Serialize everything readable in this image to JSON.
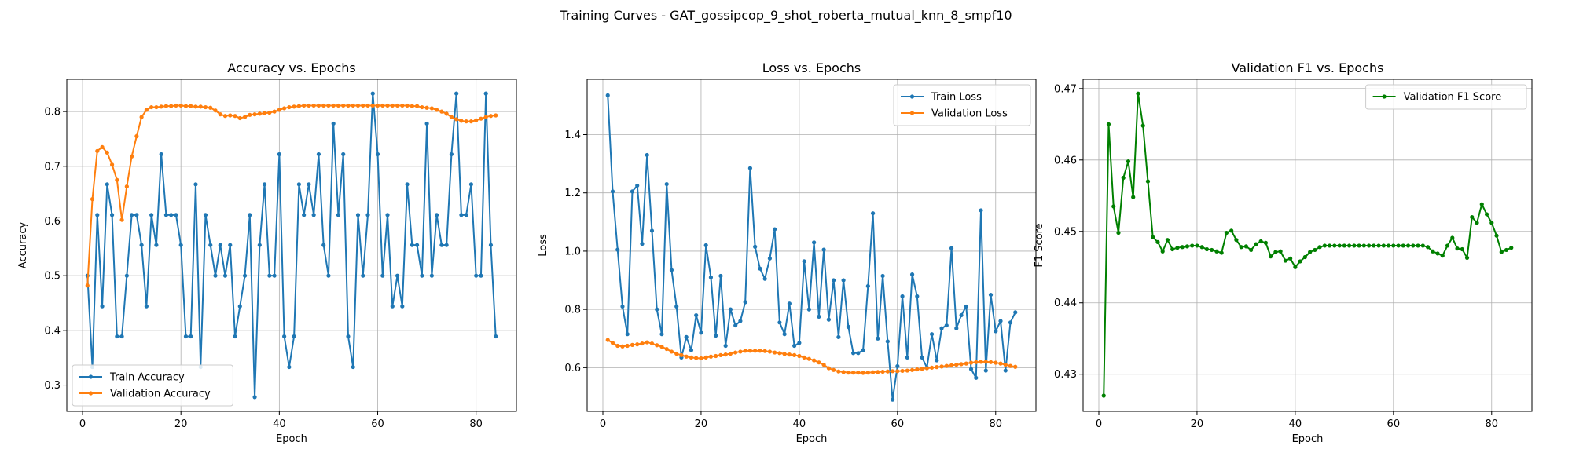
{
  "figure": {
    "title": "Training Curves - GAT_gossipcop_9_shot_roberta_mutual_knn_8_smpf10"
  },
  "chart_data": [
    {
      "type": "line",
      "title": "Accuracy vs. Epochs",
      "xlabel": "Epoch",
      "ylabel": "Accuracy",
      "xlim": [
        -3.2,
        88.2
      ],
      "ylim": [
        0.252,
        0.859
      ],
      "xticks": [
        0,
        20,
        40,
        60,
        80
      ],
      "yticks": [
        0.3,
        0.4,
        0.5,
        0.6,
        0.7,
        0.8
      ],
      "grid": true,
      "legend_position": "lower-left",
      "series": [
        {
          "name": "Train Accuracy",
          "color": "#1f77b4",
          "y": [
            0.5,
            0.333,
            0.611,
            0.444,
            0.667,
            0.611,
            0.389,
            0.389,
            0.5,
            0.611,
            0.611,
            0.556,
            0.444,
            0.611,
            0.556,
            0.722,
            0.611,
            0.611,
            0.611,
            0.556,
            0.389,
            0.389,
            0.667,
            0.333,
            0.611,
            0.556,
            0.5,
            0.556,
            0.5,
            0.556,
            0.389,
            0.444,
            0.5,
            0.611,
            0.278,
            0.556,
            0.667,
            0.5,
            0.5,
            0.722,
            0.389,
            0.333,
            0.389,
            0.667,
            0.611,
            0.667,
            0.611,
            0.722,
            0.556,
            0.5,
            0.778,
            0.611,
            0.722,
            0.389,
            0.333,
            0.611,
            0.5,
            0.611,
            0.833,
            0.722,
            0.5,
            0.611,
            0.444,
            0.5,
            0.444,
            0.667,
            0.556,
            0.556,
            0.5,
            0.778,
            0.5,
            0.611,
            0.556,
            0.556,
            0.722,
            0.833,
            0.611,
            0.611,
            0.667,
            0.5,
            0.5,
            0.833,
            0.556,
            0.389
          ]
        },
        {
          "name": "Validation Accuracy",
          "color": "#ff7f0e",
          "y": [
            0.482,
            0.64,
            0.728,
            0.735,
            0.725,
            0.703,
            0.675,
            0.602,
            0.663,
            0.718,
            0.755,
            0.79,
            0.803,
            0.808,
            0.808,
            0.809,
            0.81,
            0.81,
            0.811,
            0.811,
            0.81,
            0.81,
            0.809,
            0.809,
            0.808,
            0.807,
            0.802,
            0.795,
            0.792,
            0.793,
            0.792,
            0.788,
            0.79,
            0.794,
            0.795,
            0.796,
            0.797,
            0.798,
            0.8,
            0.803,
            0.806,
            0.808,
            0.809,
            0.81,
            0.811,
            0.811,
            0.811,
            0.811,
            0.811,
            0.811,
            0.811,
            0.811,
            0.811,
            0.811,
            0.811,
            0.811,
            0.811,
            0.811,
            0.811,
            0.811,
            0.811,
            0.811,
            0.811,
            0.811,
            0.811,
            0.811,
            0.81,
            0.81,
            0.808,
            0.807,
            0.806,
            0.803,
            0.8,
            0.796,
            0.79,
            0.786,
            0.783,
            0.782,
            0.782,
            0.784,
            0.787,
            0.79,
            0.792,
            0.793
          ]
        }
      ]
    },
    {
      "type": "line",
      "title": "Loss vs. Epochs",
      "xlabel": "Epoch",
      "ylabel": "Loss",
      "xlim": [
        -3.2,
        88.2
      ],
      "ylim": [
        0.45,
        1.59
      ],
      "xticks": [
        0,
        20,
        40,
        60,
        80
      ],
      "yticks": [
        0.6,
        0.8,
        1.0,
        1.2,
        1.4
      ],
      "grid": true,
      "legend_position": "upper-right",
      "series": [
        {
          "name": "Train Loss",
          "color": "#1f77b4",
          "y": [
            1.535,
            1.205,
            1.005,
            0.81,
            0.715,
            1.205,
            1.225,
            1.025,
            1.33,
            1.07,
            0.8,
            0.715,
            1.23,
            0.935,
            0.81,
            0.635,
            0.705,
            0.66,
            0.78,
            0.72,
            1.02,
            0.91,
            0.71,
            0.915,
            0.675,
            0.8,
            0.745,
            0.76,
            0.825,
            1.285,
            1.015,
            0.94,
            0.905,
            0.975,
            1.075,
            0.755,
            0.715,
            0.82,
            0.675,
            0.685,
            0.965,
            0.8,
            1.03,
            0.775,
            1.005,
            0.765,
            0.9,
            0.705,
            0.9,
            0.74,
            0.65,
            0.65,
            0.66,
            0.88,
            1.13,
            0.7,
            0.915,
            0.69,
            0.49,
            0.605,
            0.845,
            0.635,
            0.92,
            0.845,
            0.635,
            0.6,
            0.715,
            0.625,
            0.735,
            0.745,
            1.01,
            0.735,
            0.78,
            0.81,
            0.595,
            0.565,
            1.14,
            0.59,
            0.85,
            0.725,
            0.76,
            0.59,
            0.755,
            0.79
          ]
        },
        {
          "name": "Validation Loss",
          "color": "#ff7f0e",
          "y": [
            0.695,
            0.685,
            0.675,
            0.673,
            0.675,
            0.678,
            0.68,
            0.683,
            0.687,
            0.683,
            0.677,
            0.672,
            0.664,
            0.655,
            0.648,
            0.643,
            0.638,
            0.635,
            0.633,
            0.632,
            0.635,
            0.638,
            0.64,
            0.643,
            0.645,
            0.648,
            0.652,
            0.655,
            0.658,
            0.658,
            0.658,
            0.658,
            0.657,
            0.655,
            0.652,
            0.65,
            0.647,
            0.645,
            0.643,
            0.64,
            0.635,
            0.63,
            0.625,
            0.618,
            0.61,
            0.598,
            0.592,
            0.587,
            0.585,
            0.583,
            0.583,
            0.583,
            0.582,
            0.583,
            0.584,
            0.585,
            0.586,
            0.587,
            0.588,
            0.588,
            0.589,
            0.59,
            0.592,
            0.594,
            0.596,
            0.598,
            0.6,
            0.602,
            0.604,
            0.606,
            0.608,
            0.61,
            0.612,
            0.614,
            0.617,
            0.619,
            0.62,
            0.62,
            0.619,
            0.617,
            0.614,
            0.61,
            0.606,
            0.603
          ]
        }
      ]
    },
    {
      "type": "line",
      "title": "Validation F1 vs. Epochs",
      "xlabel": "Epoch",
      "ylabel": "F1 Score",
      "xlim": [
        -3.2,
        88.2
      ],
      "ylim": [
        0.4248,
        0.4713
      ],
      "xticks": [
        0,
        20,
        40,
        60,
        80
      ],
      "yticks": [
        0.43,
        0.44,
        0.45,
        0.46,
        0.47
      ],
      "grid": true,
      "legend_position": "upper-right",
      "series": [
        {
          "name": "Validation F1 Score",
          "color": "#008000",
          "y": [
            0.427,
            0.465,
            0.4535,
            0.4498,
            0.4575,
            0.4598,
            0.4548,
            0.4693,
            0.4648,
            0.457,
            0.4492,
            0.4485,
            0.4472,
            0.4488,
            0.4475,
            0.4477,
            0.4478,
            0.4479,
            0.448,
            0.448,
            0.4478,
            0.4475,
            0.4474,
            0.4472,
            0.447,
            0.4498,
            0.4501,
            0.4488,
            0.4478,
            0.4479,
            0.4474,
            0.4482,
            0.4486,
            0.4484,
            0.4465,
            0.4471,
            0.4472,
            0.4459,
            0.4462,
            0.445,
            0.4458,
            0.4464,
            0.4471,
            0.4474,
            0.4478,
            0.448,
            0.448,
            0.448,
            0.448,
            0.448,
            0.448,
            0.448,
            0.448,
            0.448,
            0.448,
            0.448,
            0.448,
            0.448,
            0.448,
            0.448,
            0.448,
            0.448,
            0.448,
            0.448,
            0.448,
            0.448,
            0.4478,
            0.4472,
            0.4469,
            0.4466,
            0.448,
            0.4491,
            0.4476,
            0.4475,
            0.4463,
            0.452,
            0.4512,
            0.4538,
            0.4524,
            0.4512,
            0.4494,
            0.4471,
            0.4474,
            0.4477
          ]
        }
      ]
    }
  ]
}
